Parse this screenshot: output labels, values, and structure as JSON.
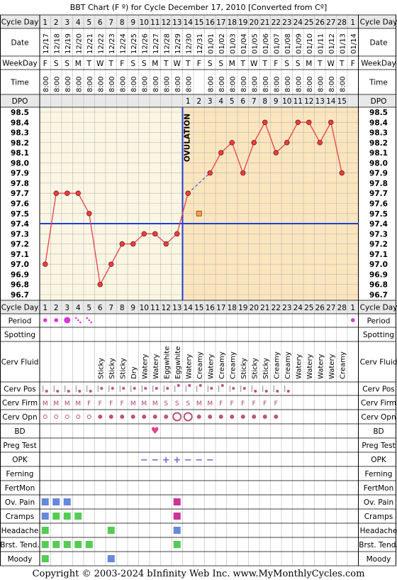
{
  "title": "BBT Chart (F º) for Cycle December 17, 2010  [Converted from Cº]",
  "footer": "Copyright © 2003-2024 bInfinity Web Inc.     www.MyMonthlyCycles.com",
  "colors": {
    "border": "#000000",
    "grid": "#b9b9b9",
    "header_bg": "#e8e8e8",
    "pre_ovulation_bg": "#fbf6e3",
    "post_ovulation_bg": "#fbe5bd",
    "temp_line": "#e8404b",
    "point_fill": "#e84040",
    "coverline": "#1f3fd6",
    "ovulation_line": "#1f3fd6",
    "period": "#dd33dd",
    "symptom_green": "#55cc55",
    "symptom_blue": "#6688dd",
    "symptom_magenta": "#cc3399",
    "bd_heart": "#dd4488",
    "mucus_dot": "#bb5577",
    "opk_minus": "#7766cc"
  },
  "labels": {
    "cycle_day": "Cycle Day",
    "date": "Date",
    "weekday": "WeekDay",
    "time": "Time",
    "dpo": "DPO",
    "ovulation": "OVULATION",
    "period": "Period",
    "spotting": "Spotting",
    "cerv_fluid": "Cerv Fluid",
    "cerv_pos": "Cerv Pos",
    "cerv_firm": "Cerv Firm",
    "cerv_opn": "Cerv Opn",
    "bd": "BD",
    "preg_test": "Preg Test",
    "opk": "OPK",
    "ferning": "Ferning",
    "fertmon": "FertMon",
    "ov_pain": "Ov. Pain",
    "cramps": "Cramps",
    "headache": "Headache",
    "brst_tend": "Brst. Tend.",
    "moody": "Moody"
  },
  "chart_data": {
    "type": "line",
    "title": "BBT Chart (F º) for Cycle December 17, 2010  [Converted from Cº]",
    "cycle_days": [
      "1",
      "2",
      "3",
      "4",
      "5",
      "6",
      "7",
      "8",
      "9",
      "10",
      "11",
      "12",
      "13",
      "14",
      "15",
      "16",
      "17",
      "18",
      "19",
      "20",
      "21",
      "22",
      "23",
      "24",
      "25",
      "26",
      "27",
      "28",
      "1"
    ],
    "dates": [
      "12/17",
      "12/18",
      "12/19",
      "12/20",
      "12/21",
      "12/22",
      "12/23",
      "12/24",
      "12/25",
      "12/26",
      "12/27",
      "12/28",
      "12/29",
      "12/30",
      "12/31",
      "01/01",
      "01/02",
      "01/03",
      "01/04",
      "01/05",
      "01/06",
      "01/07",
      "01/08",
      "01/09",
      "01/10",
      "01/11",
      "01/12",
      "01/13",
      "01/14"
    ],
    "weekdays": [
      "F",
      "S",
      "S",
      "M",
      "T",
      "W",
      "T",
      "F",
      "S",
      "S",
      "M",
      "T",
      "W",
      "T",
      "F",
      "S",
      "S",
      "M",
      "T",
      "W",
      "T",
      "F",
      "S",
      "S",
      "M",
      "T",
      "W",
      "T",
      "F"
    ],
    "times": [
      "8:00",
      "8:00",
      "8:00",
      "8:00",
      "8:00",
      "8:00",
      "8:00",
      "8:00",
      "8:00",
      "8:00",
      "8:00",
      "8:00",
      "8:00",
      "8:00",
      "",
      "8:00",
      "8:00",
      "8:00",
      "8:00",
      "8:00",
      "8:00",
      "8:00",
      "8:00",
      "8:00",
      "8:00",
      "8:00",
      "8:00",
      "8:00",
      ""
    ],
    "dpo": [
      "",
      "",
      "",
      "",
      "",
      "",
      "",
      "",
      "",
      "",
      "",
      "",
      "",
      "1",
      "2",
      "3",
      "4",
      "5",
      "6",
      "7",
      "8",
      "9",
      "10",
      "11",
      "12",
      "13",
      "14",
      "15",
      ""
    ],
    "temperatures": [
      97.0,
      97.7,
      97.7,
      97.7,
      97.5,
      96.8,
      97.0,
      97.2,
      97.2,
      97.3,
      97.3,
      97.2,
      97.3,
      97.7,
      null,
      97.9,
      98.1,
      98.2,
      97.9,
      98.2,
      98.4,
      98.1,
      98.2,
      98.4,
      98.4,
      98.2,
      98.4,
      97.9,
      null
    ],
    "excluded_temperature": {
      "cycle_day": 15,
      "value": 97.5
    },
    "y_ticks": [
      "98.5",
      "98.4",
      "98.3",
      "98.2",
      "98.1",
      "98.0",
      "97.9",
      "97.8",
      "97.7",
      "97.6",
      "97.5",
      "97.4",
      "97.3",
      "97.2",
      "97.1",
      "97.0",
      "96.9",
      "96.8",
      "96.7"
    ],
    "ylim": [
      96.7,
      98.5
    ],
    "coverline": 97.4,
    "ovulation_after_day": 13,
    "grid": true
  },
  "cerv_fluid": [
    "",
    "",
    "",
    "",
    "",
    "Sticky",
    "Sticky",
    "Sticky",
    "Dry",
    "Watery",
    "Watery",
    "Eggwhite",
    "Eggwhite",
    "Watery",
    "Creamy",
    "Watery",
    "Creamy",
    "Creamy",
    "Sticky",
    "Sticky",
    "Sticky",
    "Creamy",
    "Creamy",
    "Watery",
    "Watery",
    "Watery",
    "Watery",
    "Creamy",
    ""
  ],
  "period": [
    "heavy-dot",
    "dot",
    "large-dot",
    "light-dots",
    "light-dots",
    "",
    "",
    "",
    "",
    "",
    "",
    "",
    "",
    "",
    "",
    "",
    "",
    "",
    "",
    "",
    "",
    "",
    "",
    "",
    "",
    "",
    "",
    "",
    "dot"
  ],
  "cerv_pos": [
    "low",
    "low",
    "low",
    "low",
    "low",
    "mid",
    "mid",
    "mid",
    "mid",
    "mid",
    "mid",
    "mid",
    "high",
    "high",
    "high",
    "mid",
    "high",
    "mid",
    "mid",
    "low",
    "low",
    "low",
    "low",
    "",
    "",
    "",
    "",
    "",
    ""
  ],
  "cerv_firm": [
    "M",
    "M",
    "M",
    "M",
    "F",
    "F",
    "F",
    "F",
    "M",
    "M",
    "M",
    "S",
    "S",
    "S",
    "M",
    "M",
    "F",
    "F",
    "F",
    "F",
    "F",
    "F",
    "",
    "",
    "",
    "",
    "",
    "",
    ""
  ],
  "cerv_opn": [
    "s",
    "s",
    "s",
    "s",
    "s",
    "m",
    "m",
    "m",
    "m",
    "m",
    "m",
    "m",
    "L",
    "L",
    "m",
    "m",
    "m",
    "m",
    "m",
    "m",
    "m",
    "m",
    "",
    "",
    "",
    "",
    "",
    "",
    ""
  ],
  "bd": [
    "",
    "",
    "",
    "",
    "",
    "",
    "",
    "",
    "",
    "",
    "♥",
    "",
    "",
    "",
    "",
    "",
    "",
    "",
    "",
    "",
    "",
    "",
    "",
    "",
    "",
    "",
    "",
    "",
    ""
  ],
  "opk": [
    "",
    "",
    "",
    "",
    "",
    "",
    "",
    "",
    "",
    "−",
    "−",
    "+",
    "+",
    "−",
    "−",
    "−",
    "",
    "",
    "",
    "",
    "",
    "",
    "",
    "",
    "",
    "",
    "",
    "",
    ""
  ],
  "ov_pain": [
    "blue",
    "blue",
    "blue",
    "",
    "",
    "",
    "",
    "",
    "",
    "",
    "",
    "",
    "magenta",
    "",
    "",
    "",
    "",
    "",
    "",
    "",
    "",
    "",
    "",
    "",
    "",
    "",
    "",
    "",
    ""
  ],
  "cramps": [
    "blue",
    "green",
    "green",
    "green",
    "",
    "",
    "",
    "",
    "",
    "",
    "",
    "",
    "magenta",
    "",
    "",
    "",
    "",
    "",
    "",
    "",
    "",
    "",
    "",
    "",
    "",
    "",
    "",
    "",
    ""
  ],
  "headache": [
    "green",
    "",
    "",
    "",
    "",
    "",
    "green",
    "",
    "",
    "",
    "",
    "",
    "blue",
    "",
    "",
    "",
    "",
    "",
    "",
    "",
    "",
    "",
    "",
    "",
    "",
    "",
    "",
    "",
    ""
  ],
  "brst_tend": [
    "green",
    "green",
    "green",
    "green",
    "green",
    "",
    "",
    "",
    "",
    "",
    "",
    "",
    "green",
    "",
    "",
    "",
    "",
    "",
    "",
    "",
    "",
    "",
    "",
    "",
    "",
    "",
    "",
    "",
    ""
  ],
  "moody": [
    "green",
    "",
    "",
    "",
    "",
    "",
    "blue",
    "",
    "",
    "",
    "",
    "",
    "",
    "",
    "",
    "",
    "",
    "",
    "",
    "",
    "",
    "",
    "",
    "",
    "",
    "",
    "",
    "",
    ""
  ]
}
